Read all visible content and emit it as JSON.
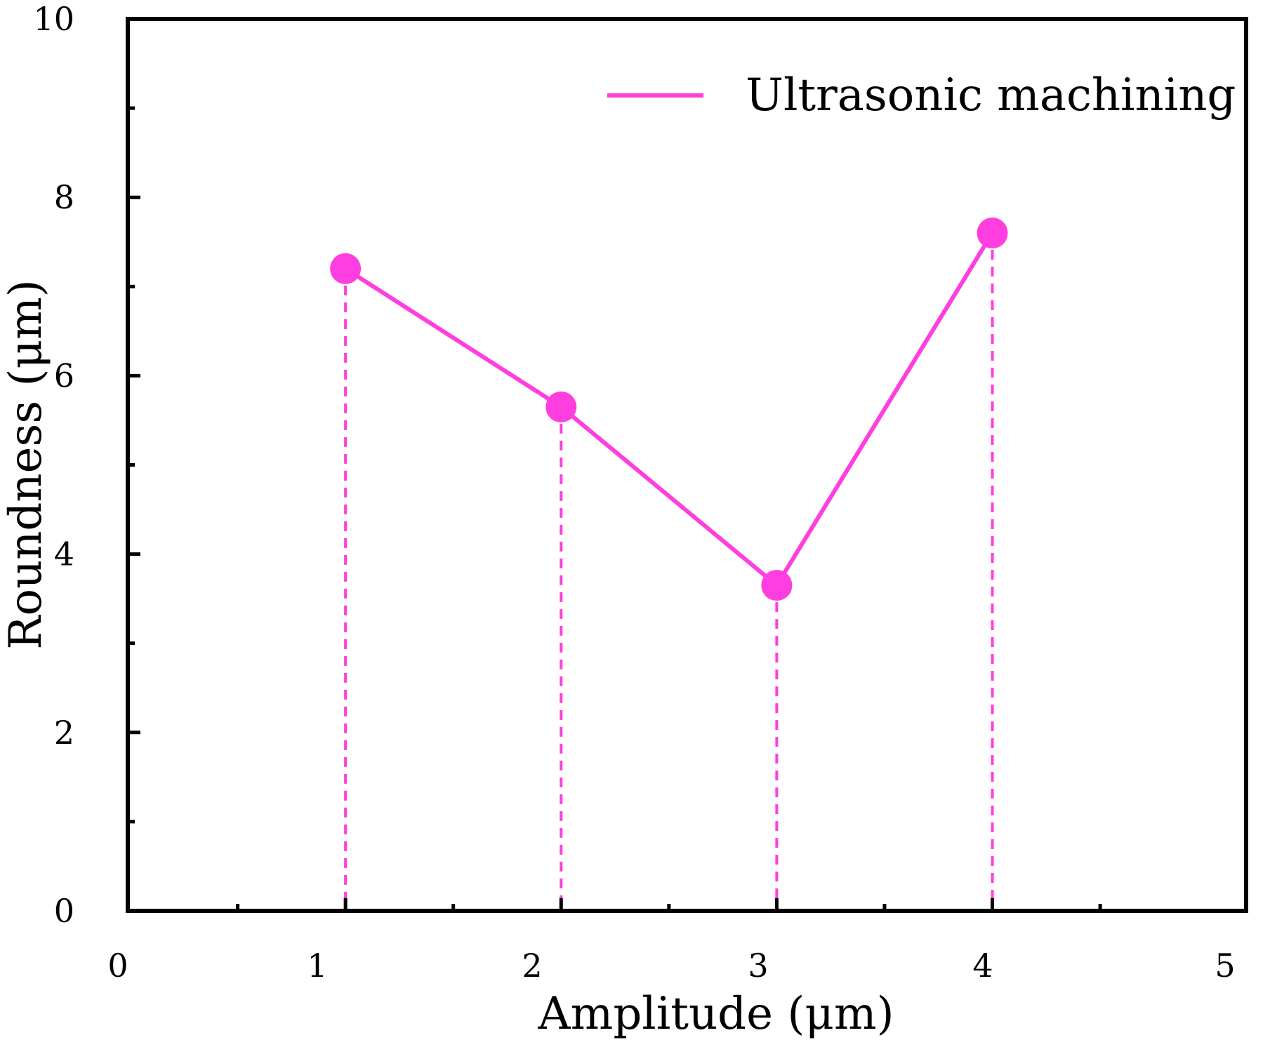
{
  "chart_data": {
    "type": "line",
    "xlabel": "Amplitude (μm)",
    "ylabel": "Roundness (μm)",
    "xlim": [
      0,
      5
    ],
    "ylim": [
      0,
      10
    ],
    "x_ticks": [
      "0",
      "1",
      "2",
      "3",
      "4",
      "5"
    ],
    "y_ticks": [
      "0",
      "2",
      "4",
      "6",
      "8",
      "10"
    ],
    "grid": false,
    "legend_position": "top-right",
    "series": [
      {
        "name": "Ultrasonic machining",
        "color": "#ff3ee0",
        "marker": "circle",
        "drop_lines": true,
        "x": [
          1,
          2,
          3,
          4
        ],
        "y": [
          7.2,
          5.65,
          3.65,
          7.6
        ]
      }
    ]
  }
}
